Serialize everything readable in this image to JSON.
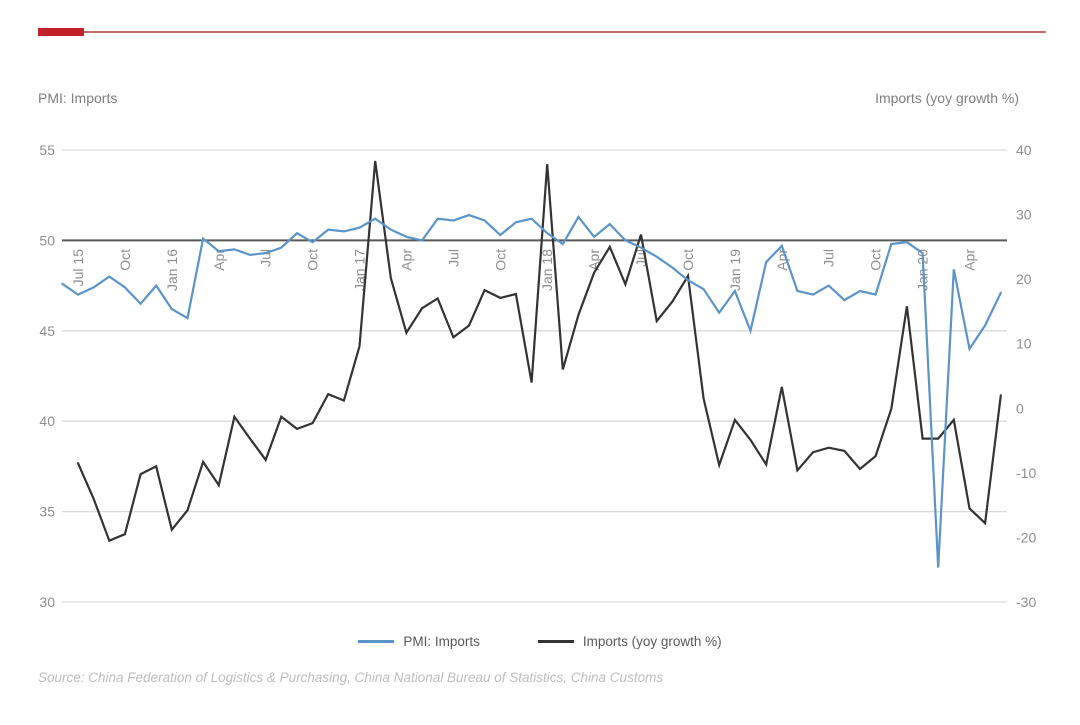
{
  "header": {
    "accent_color": "#c2202d",
    "rule_color": "#bc6f65",
    "axis_title_left": "PMI: Imports",
    "axis_title_right": "Imports (yoy growth %)"
  },
  "source_note": "Source: China Federation of Logistics & Purchasing, China National Bureau of Statistics, China Customs",
  "chart_data": {
    "type": "line",
    "title": "",
    "x_unit": "month",
    "x_tick_labels": [
      "Jul 15",
      "Oct",
      "Jan 16",
      "Apr",
      "Jul",
      "Oct",
      "Jan 17",
      "Apr",
      "Jul",
      "Oct",
      "Jan 18",
      "Apr",
      "Jul",
      "Oct",
      "Jan 19",
      "Apr",
      "Jul",
      "Oct",
      "Jan 20",
      "Apr"
    ],
    "x_tick_every": 3,
    "grid": true,
    "gridline_color": "#d9d9d9",
    "emphasized_gridline_left_value": 50,
    "emphasized_gridline_color": "#595959",
    "tick_label_color": "#8f8f8f",
    "left_axis": {
      "title": "PMI: Imports",
      "min": 30,
      "max": 55,
      "ticks": [
        55,
        50,
        45,
        40,
        35,
        30
      ]
    },
    "right_axis": {
      "title": "Imports (yoy growth %)",
      "min": -30,
      "max": 40,
      "ticks": [
        40,
        30,
        20,
        10,
        0,
        -10,
        -20,
        -30
      ]
    },
    "legend_position": "bottom-center",
    "series": [
      {
        "name": "PMI: Imports",
        "axis": "left",
        "color": "#5b94c8",
        "start_month_offset": -1,
        "first_month": "Jun 15",
        "values": [
          47.6,
          47.0,
          47.4,
          48.0,
          47.4,
          46.5,
          47.5,
          46.2,
          45.7,
          50.1,
          49.4,
          49.5,
          49.2,
          49.3,
          49.6,
          50.4,
          49.9,
          50.6,
          50.5,
          50.7,
          51.2,
          50.6,
          50.2,
          50.0,
          51.2,
          51.1,
          51.4,
          51.1,
          50.3,
          51.0,
          51.2,
          50.4,
          49.8,
          51.3,
          50.2,
          50.9,
          50.0,
          49.6,
          49.1,
          48.5,
          47.8,
          47.3,
          46.0,
          47.2,
          45.0,
          48.8,
          49.7,
          47.2,
          47.0,
          47.5,
          46.7,
          47.2,
          47.0,
          49.8,
          49.9,
          49.3,
          31.9,
          48.4,
          44.0,
          45.3,
          47.1
        ]
      },
      {
        "name": "Imports (yoy growth %)",
        "axis": "right",
        "color": "#333333",
        "start_month_offset": 0,
        "first_month": "Jul 15",
        "values": [
          -8.5,
          -14.0,
          -20.5,
          -19.5,
          -10.2,
          -9.0,
          -18.8,
          -15.8,
          -8.3,
          -11.9,
          -1.3,
          -4.7,
          -8.0,
          -1.3,
          -3.2,
          -2.3,
          2.2,
          1.2,
          9.6,
          38.3,
          20.2,
          11.7,
          15.5,
          17.0,
          11.0,
          12.8,
          18.3,
          17.1,
          17.7,
          4.0,
          37.8,
          6.0,
          14.5,
          21.0,
          25.0,
          19.2,
          26.9,
          13.5,
          16.5,
          20.5,
          1.5,
          -8.8,
          -1.8,
          -4.9,
          -8.7,
          3.3,
          -9.6,
          -6.8,
          -6.1,
          -6.6,
          -9.4,
          -7.4,
          -0.1,
          15.8,
          -4.7,
          -4.7,
          -1.8,
          -15.5,
          -17.8,
          2.0
        ]
      }
    ]
  }
}
